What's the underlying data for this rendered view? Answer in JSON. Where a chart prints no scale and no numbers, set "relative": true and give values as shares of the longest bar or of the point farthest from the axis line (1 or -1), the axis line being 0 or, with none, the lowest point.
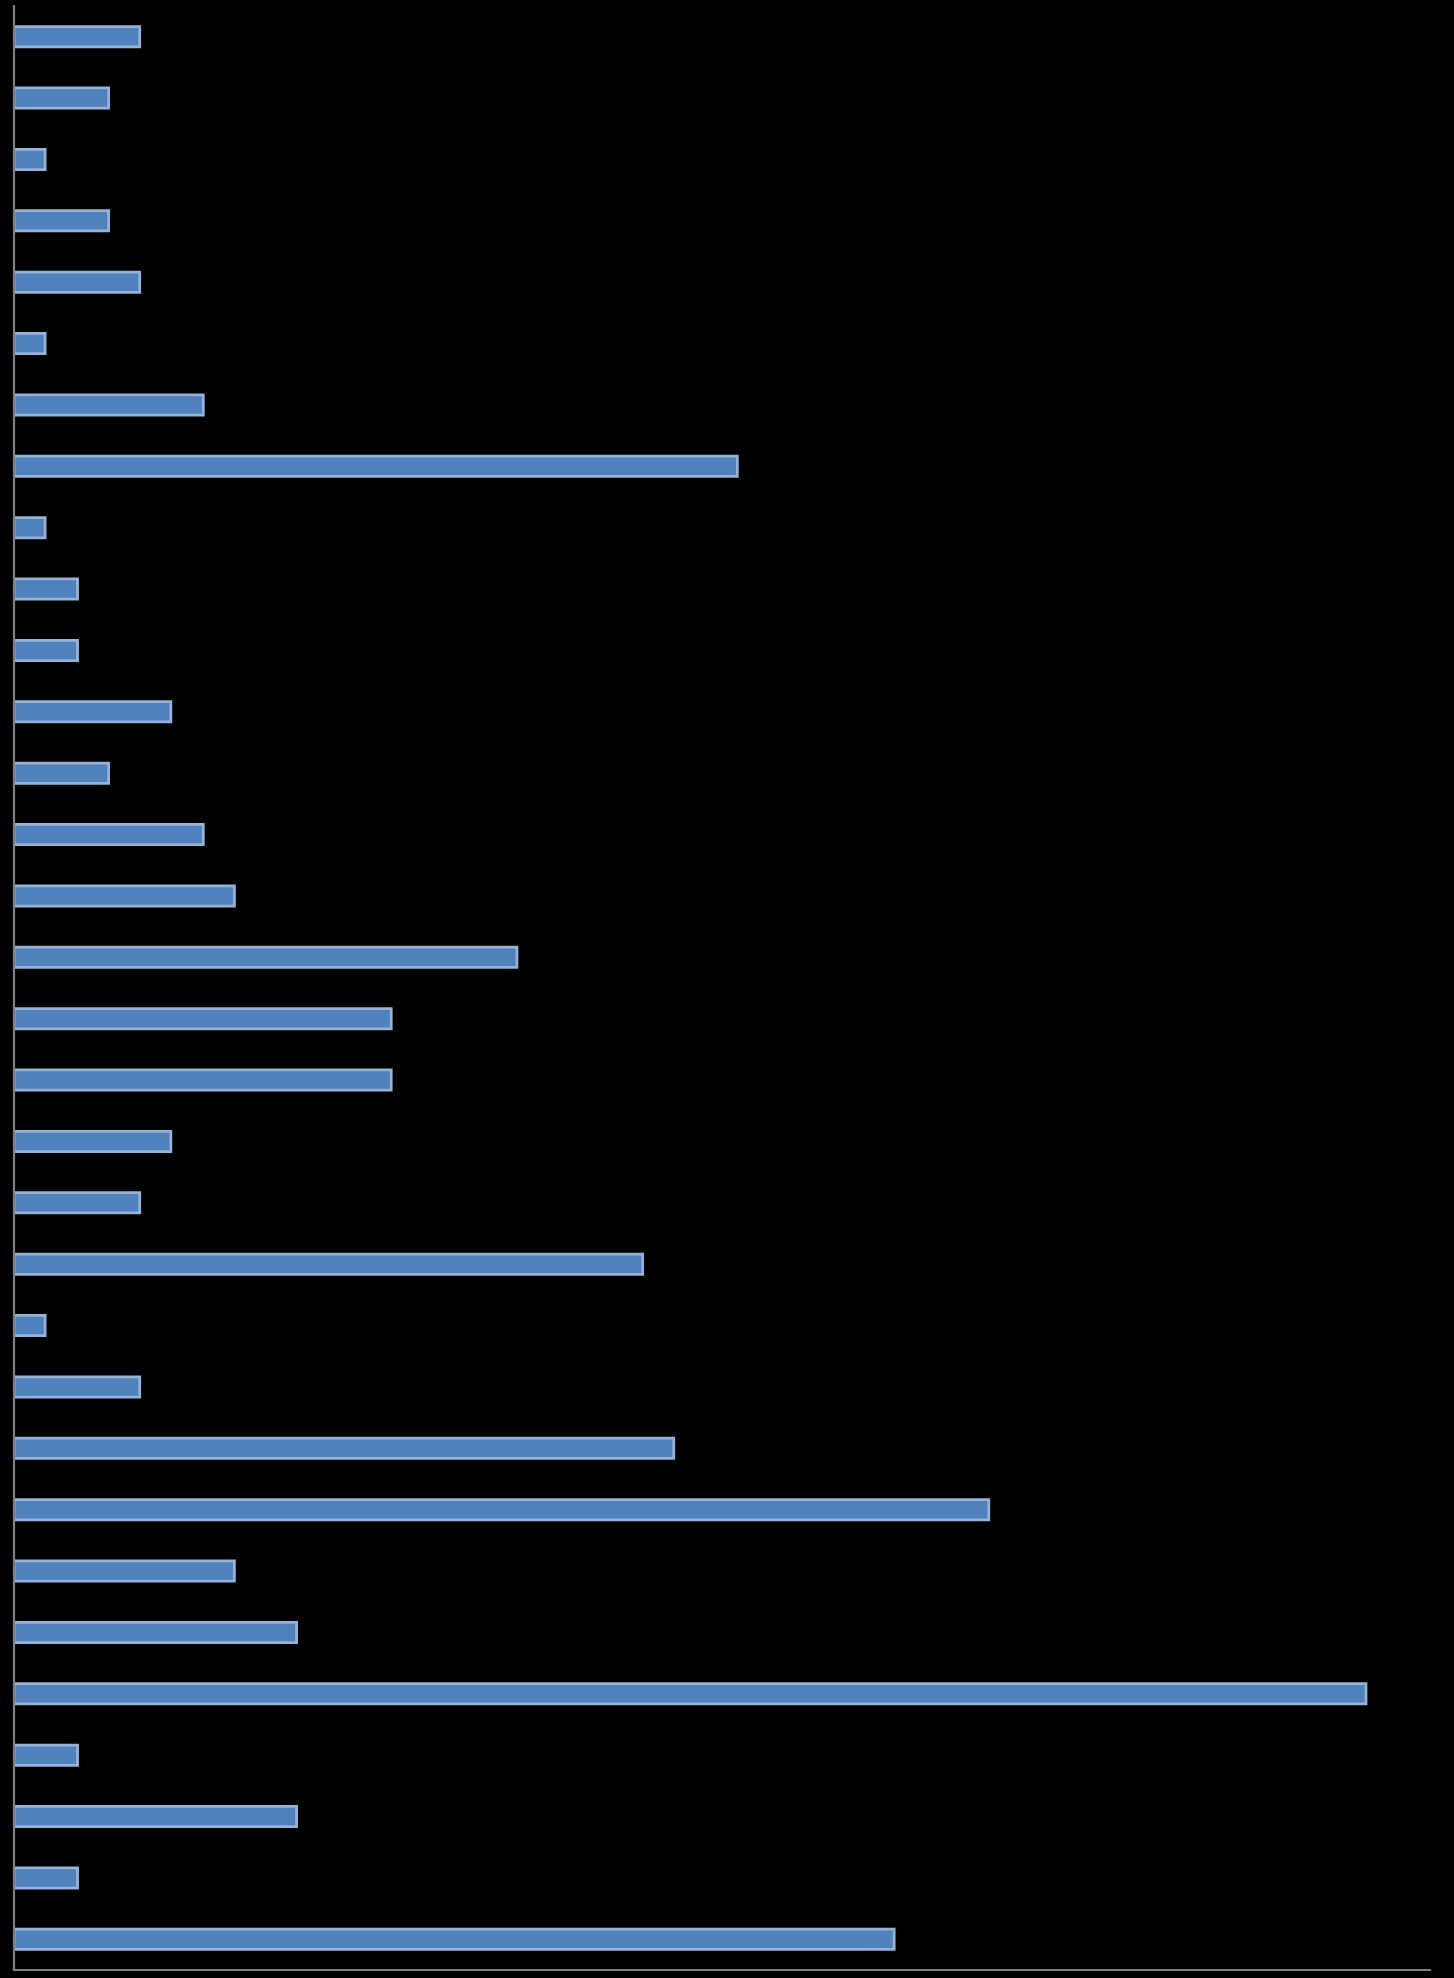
{
  "chart_data": {
    "type": "bar",
    "orientation": "horizontal",
    "relative": true,
    "categories": [
      null,
      null,
      null,
      null,
      null,
      null,
      null,
      null,
      null,
      null,
      null,
      null,
      null,
      null,
      null,
      null,
      null,
      null,
      null,
      null,
      null,
      null,
      null,
      null,
      null,
      null,
      null,
      null,
      null,
      null,
      null,
      null
    ],
    "values": [
      0.093,
      0.07,
      0.023,
      0.07,
      0.093,
      0.023,
      0.14,
      0.535,
      0.023,
      0.047,
      0.047,
      0.116,
      0.07,
      0.14,
      0.163,
      0.372,
      0.279,
      0.279,
      0.116,
      0.093,
      0.465,
      0.023,
      0.093,
      0.488,
      0.721,
      0.163,
      0.209,
      1,
      0.047,
      0.209,
      0.047,
      0.651
    ],
    "color": "#4f81bd",
    "grid": false,
    "legend": false
  }
}
